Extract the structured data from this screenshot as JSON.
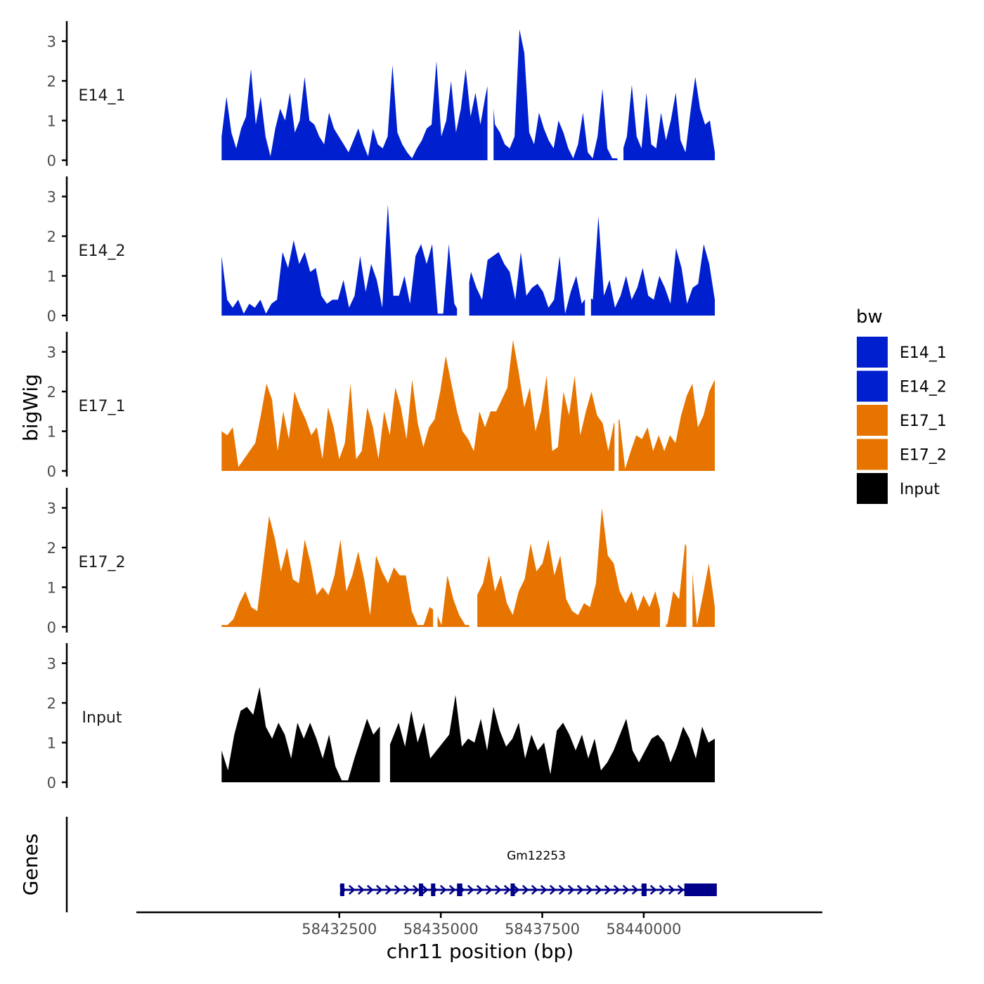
{
  "chart_data": {
    "type": "area",
    "ylabel": "bigWig",
    "xlabel": "chr11 position (bp)",
    "genes_label": "Genes",
    "x_range": [
      58429600,
      58441750
    ],
    "xlim": [
      58427500,
      58444400
    ],
    "ylim": [
      0,
      3.4
    ],
    "y_ticks": [
      "0",
      "1",
      "2",
      "3"
    ],
    "x_ticks": [
      {
        "value": 58432500,
        "label": "58432500"
      },
      {
        "value": 58435000,
        "label": "58435000"
      },
      {
        "value": 58437500,
        "label": "58437500"
      },
      {
        "value": 58440000,
        "label": "58440000"
      }
    ],
    "legend": {
      "title": "bw",
      "entries": [
        {
          "label": "E14_1",
          "color": "#0020d0"
        },
        {
          "label": "E14_2",
          "color": "#0020d0"
        },
        {
          "label": "E17_1",
          "color": "#e87400"
        },
        {
          "label": "E17_2",
          "color": "#e87400"
        },
        {
          "label": "Input",
          "color": "#000000"
        }
      ]
    },
    "series": [
      {
        "name": "E14_1",
        "label": "E14_1",
        "color": "#0020d0",
        "values": [
          0.6,
          1.6,
          0.7,
          0.3,
          0.8,
          1.1,
          2.3,
          0.9,
          1.6,
          0.6,
          0.1,
          0.8,
          1.3,
          1.0,
          1.7,
          0.7,
          1.0,
          2.1,
          1.0,
          0.9,
          0.6,
          0.4,
          1.2,
          0.8,
          0.6,
          0.4,
          0.2,
          0.5,
          0.8,
          0.4,
          0.1,
          0.8,
          0.4,
          0.3,
          0.6,
          2.4,
          0.7,
          0.4,
          0.2,
          0.05,
          0.3,
          0.5,
          0.8,
          0.9,
          2.5,
          0.6,
          1.0,
          2.0,
          0.7,
          1.3,
          2.3,
          1.1,
          1.7,
          0.9,
          1.6,
          2.2,
          0.9,
          0.7,
          0.4,
          0.3,
          0.6,
          3.3,
          2.7,
          0.7,
          0.4,
          1.2,
          0.8,
          0.5,
          0.3,
          1.0,
          0.7,
          0.3,
          0.05,
          0.4,
          1.2,
          0.2,
          0.05,
          0.6,
          1.8,
          0.3,
          0.05,
          0.05,
          0.2,
          0.6,
          1.9,
          0.6,
          0.3,
          1.7,
          0.4,
          0.3,
          1.2,
          0.5,
          1.0,
          1.7,
          0.5,
          0.2,
          1.2,
          2.1,
          1.3,
          0.9,
          1.0,
          0.2
        ]
      },
      {
        "name": "E14_2",
        "label": "E14_2",
        "color": "#0020d0",
        "values": [
          1.5,
          0.4,
          0.2,
          0.4,
          0.05,
          0.3,
          0.2,
          0.4,
          0.05,
          0.3,
          0.4,
          1.6,
          1.2,
          1.9,
          1.3,
          1.6,
          1.1,
          1.2,
          0.5,
          0.3,
          0.4,
          0.4,
          0.9,
          0.2,
          0.5,
          1.5,
          0.6,
          1.3,
          0.9,
          0.2,
          2.8,
          0.5,
          0.5,
          1.0,
          0.3,
          1.5,
          1.8,
          1.3,
          1.8,
          0.05,
          0.05,
          1.8,
          0.3,
          0.05,
          0.3,
          1.1,
          0.7,
          0.4,
          1.4,
          1.5,
          1.6,
          1.3,
          1.1,
          0.4,
          1.6,
          0.5,
          0.7,
          0.8,
          0.6,
          0.2,
          0.4,
          1.5,
          0.05,
          0.6,
          1.0,
          0.3,
          0.5,
          0.4,
          2.5,
          0.5,
          0.9,
          0.2,
          0.5,
          1.0,
          0.4,
          0.7,
          1.2,
          0.5,
          0.4,
          1.0,
          0.7,
          0.3,
          1.7,
          1.2,
          0.3,
          0.7,
          0.8,
          1.8,
          1.3,
          0.4
        ]
      },
      {
        "name": "E17_1",
        "label": "E17_1",
        "color": "#e87400",
        "values": [
          1.0,
          0.9,
          1.1,
          0.1,
          0.3,
          0.5,
          0.7,
          1.4,
          2.2,
          1.8,
          0.5,
          1.5,
          0.8,
          2.0,
          1.6,
          1.3,
          0.9,
          1.1,
          0.3,
          1.6,
          1.1,
          0.3,
          0.7,
          2.2,
          0.3,
          0.5,
          1.6,
          1.1,
          0.3,
          1.5,
          0.9,
          2.1,
          1.6,
          0.8,
          2.3,
          1.2,
          0.6,
          1.1,
          1.3,
          2.0,
          2.9,
          2.2,
          1.5,
          1.0,
          0.8,
          0.5,
          1.5,
          1.1,
          1.5,
          1.5,
          1.8,
          2.1,
          3.3,
          2.5,
          1.6,
          2.1,
          1.0,
          1.5,
          2.4,
          0.5,
          0.6,
          2.0,
          1.4,
          2.4,
          0.9,
          1.5,
          2.0,
          1.4,
          1.2,
          0.5,
          1.2,
          1.3,
          0.05,
          0.5,
          0.9,
          0.8,
          1.1,
          0.5,
          0.9,
          0.5,
          0.9,
          0.7,
          1.4,
          1.9,
          2.2,
          1.1,
          1.4,
          2.0,
          2.3
        ]
      },
      {
        "name": "E17_2",
        "label": "E17_2",
        "color": "#e87400",
        "values": [
          0.05,
          0.05,
          0.2,
          0.6,
          0.9,
          0.5,
          0.4,
          1.6,
          2.8,
          2.2,
          1.4,
          2.0,
          1.2,
          1.1,
          2.2,
          1.6,
          0.8,
          1.0,
          0.8,
          1.3,
          2.2,
          0.9,
          1.3,
          1.9,
          1.2,
          0.3,
          1.8,
          1.4,
          1.1,
          1.5,
          1.3,
          1.3,
          0.4,
          0.05,
          0.05,
          0.5,
          0.4,
          0.05,
          1.3,
          0.7,
          0.3,
          0.05,
          0.05,
          0.8,
          1.1,
          1.8,
          0.9,
          1.3,
          0.6,
          0.3,
          0.9,
          1.2,
          2.1,
          1.4,
          1.6,
          2.2,
          1.3,
          1.8,
          0.7,
          0.4,
          0.3,
          0.6,
          0.5,
          1.1,
          3.0,
          1.8,
          1.6,
          0.9,
          0.6,
          0.9,
          0.4,
          0.8,
          0.5,
          0.9,
          0.3,
          0.05,
          0.9,
          0.7,
          2.1,
          1.8,
          0.05,
          0.8,
          1.6,
          0.5
        ]
      },
      {
        "name": "Input",
        "label": "Input",
        "color": "#000000",
        "values": [
          0.8,
          0.3,
          1.2,
          1.8,
          1.9,
          1.7,
          2.4,
          1.4,
          1.1,
          1.5,
          1.2,
          0.6,
          1.5,
          1.1,
          1.5,
          1.1,
          0.6,
          1.2,
          0.4,
          0.05,
          0.05,
          0.6,
          1.1,
          1.6,
          1.2,
          1.4,
          0.7,
          1.1,
          1.5,
          0.9,
          1.8,
          1.0,
          1.5,
          0.6,
          0.8,
          1.0,
          1.2,
          2.2,
          0.9,
          1.1,
          1.0,
          1.6,
          0.8,
          1.9,
          1.3,
          0.9,
          1.1,
          1.5,
          0.6,
          1.2,
          0.8,
          1.0,
          0.2,
          1.3,
          1.5,
          1.2,
          0.8,
          1.2,
          0.6,
          1.1,
          0.3,
          0.5,
          0.8,
          1.2,
          1.6,
          0.8,
          0.5,
          0.8,
          1.1,
          1.2,
          1.0,
          0.5,
          0.9,
          1.4,
          1.1,
          0.6,
          1.4,
          1.0,
          1.1
        ]
      }
    ],
    "gaps": {
      "E14_1": [
        [
          58436150,
          58436300
        ],
        [
          58439350,
          58439500
        ]
      ],
      "E14_2": [
        [
          58435400,
          58435700
        ],
        [
          58438550,
          58438700
        ]
      ],
      "E17_1": [
        [
          58439280,
          58439380
        ]
      ],
      "E17_2": [
        [
          58434810,
          58434920
        ],
        [
          58435700,
          58435900
        ],
        [
          58440400,
          58440550
        ],
        [
          58441050,
          58441200
        ]
      ],
      "Input": [
        [
          58433500,
          58433750
        ]
      ]
    },
    "gene": {
      "name": "Gm12253",
      "color": "#00008b",
      "start": 58432550,
      "end": 58441800,
      "strand": "+",
      "exons": [
        [
          58432520,
          58432620
        ],
        [
          58434460,
          58434560
        ],
        [
          58434760,
          58434860
        ],
        [
          58435400,
          58435530
        ],
        [
          58436720,
          58436820
        ],
        [
          58439950,
          58440070
        ],
        [
          58441000,
          58441800
        ]
      ]
    }
  }
}
